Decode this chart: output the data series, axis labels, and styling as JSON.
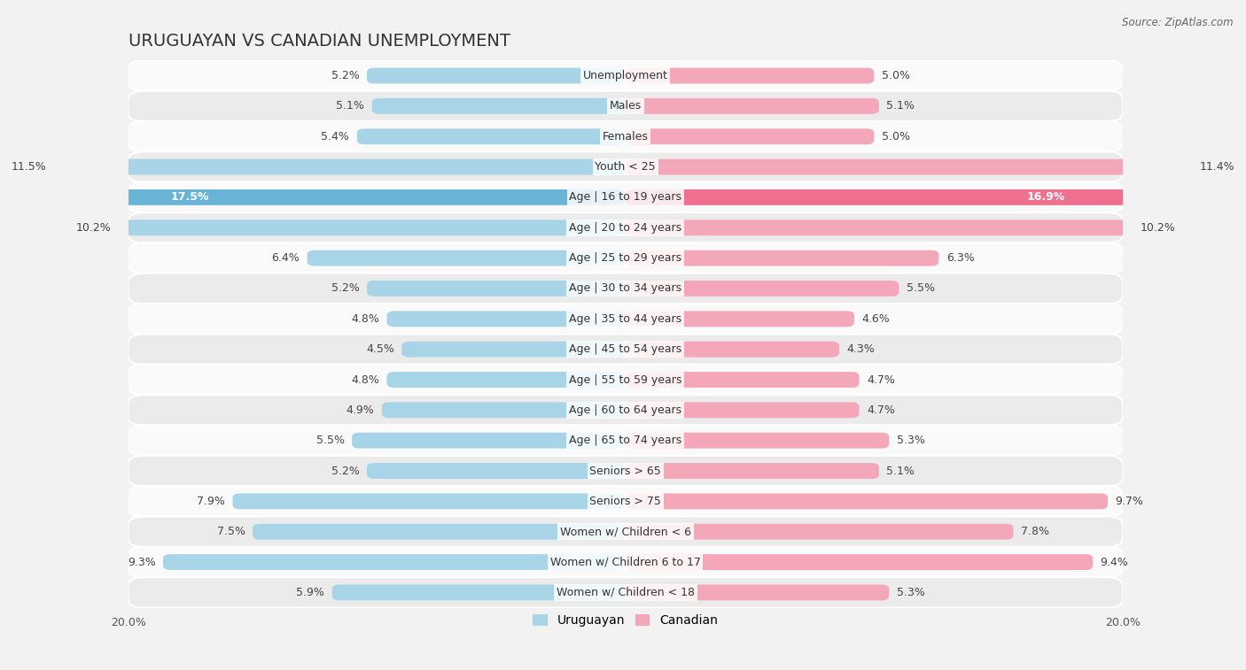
{
  "title": "URUGUAYAN VS CANADIAN UNEMPLOYMENT",
  "source": "Source: ZipAtlas.com",
  "categories": [
    "Unemployment",
    "Males",
    "Females",
    "Youth < 25",
    "Age | 16 to 19 years",
    "Age | 20 to 24 years",
    "Age | 25 to 29 years",
    "Age | 30 to 34 years",
    "Age | 35 to 44 years",
    "Age | 45 to 54 years",
    "Age | 55 to 59 years",
    "Age | 60 to 64 years",
    "Age | 65 to 74 years",
    "Seniors > 65",
    "Seniors > 75",
    "Women w/ Children < 6",
    "Women w/ Children 6 to 17",
    "Women w/ Children < 18"
  ],
  "uruguayan": [
    5.2,
    5.1,
    5.4,
    11.5,
    17.5,
    10.2,
    6.4,
    5.2,
    4.8,
    4.5,
    4.8,
    4.9,
    5.5,
    5.2,
    7.9,
    7.5,
    9.3,
    5.9
  ],
  "canadian": [
    5.0,
    5.1,
    5.0,
    11.4,
    16.9,
    10.2,
    6.3,
    5.5,
    4.6,
    4.3,
    4.7,
    4.7,
    5.3,
    5.1,
    9.7,
    7.8,
    9.4,
    5.3
  ],
  "uruguayan_color": "#a8d4e8",
  "canadian_color": "#f4a7b9",
  "highlight_uruguayan_color": "#6ab4d8",
  "highlight_canadian_color": "#f07090",
  "bar_height": 0.52,
  "max_val": 20.0,
  "background_color": "#f2f2f2",
  "row_color_light": "#fafafa",
  "row_color_dark": "#ebebeb",
  "legend_uruguayan": "Uruguayan",
  "legend_canadian": "Canadian",
  "highlight_indices": [
    4
  ],
  "title_fontsize": 14,
  "label_fontsize": 9,
  "tick_fontsize": 9
}
